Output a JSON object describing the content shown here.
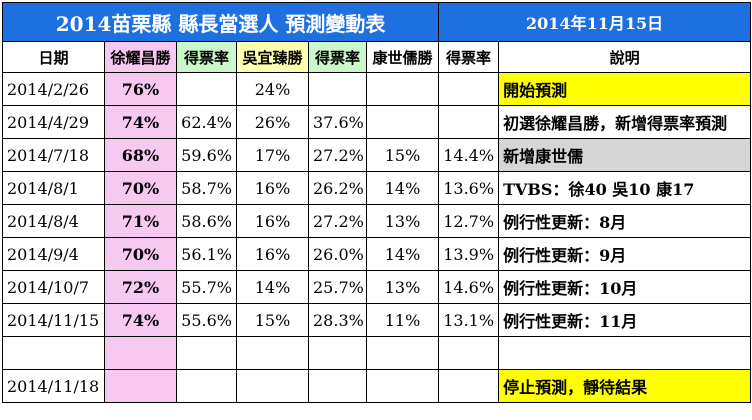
{
  "title": "2014苗栗縣 縣長當選人 預測變動表",
  "title_date": "2014年11月15日",
  "headers": {
    "date": "日期",
    "hsu": "徐耀昌勝",
    "hsu_rate": "得票率",
    "wu": "吳宜臻勝",
    "wu_rate": "得票率",
    "kang": "康世儒勝",
    "kang_rate": "得票率",
    "note": "說明"
  },
  "rows": [
    {
      "date": "2014/2/26",
      "hsu": "76%",
      "hsu_rate": "",
      "wu": "24%",
      "wu_rate": "",
      "kang": "",
      "kang_rate": "",
      "note": "開始預測"
    },
    {
      "date": "2014/4/29",
      "hsu": "74%",
      "hsu_rate": "62.4%",
      "wu": "26%",
      "wu_rate": "37.6%",
      "kang": "",
      "kang_rate": "",
      "note": "初選徐耀昌勝，新增得票率預測"
    },
    {
      "date": "2014/7/18",
      "hsu": "68%",
      "hsu_rate": "59.6%",
      "wu": "17%",
      "wu_rate": "27.2%",
      "kang": "15%",
      "kang_rate": "14.4%",
      "note": "新增康世儒"
    },
    {
      "date": "2014/8/1",
      "hsu": "70%",
      "hsu_rate": "58.7%",
      "wu": "16%",
      "wu_rate": "26.2%",
      "kang": "14%",
      "kang_rate": "13.6%",
      "note": "TVBS：徐40 吳10 康17"
    },
    {
      "date": "2014/8/4",
      "hsu": "71%",
      "hsu_rate": "58.6%",
      "wu": "16%",
      "wu_rate": "27.2%",
      "kang": "13%",
      "kang_rate": "12.7%",
      "note": "例行性更新：8月"
    },
    {
      "date": "2014/9/4",
      "hsu": "70%",
      "hsu_rate": "56.1%",
      "wu": "16%",
      "wu_rate": "26.0%",
      "kang": "14%",
      "kang_rate": "13.9%",
      "note": "例行性更新：9月"
    },
    {
      "date": "2014/10/7",
      "hsu": "72%",
      "hsu_rate": "55.7%",
      "wu": "14%",
      "wu_rate": "25.7%",
      "kang": "13%",
      "kang_rate": "14.6%",
      "note": "例行性更新：10月"
    },
    {
      "date": "2014/11/15",
      "hsu": "74%",
      "hsu_rate": "55.6%",
      "wu": "15%",
      "wu_rate": "28.3%",
      "kang": "11%",
      "kang_rate": "13.1%",
      "note": "例行性更新：11月"
    },
    {
      "date": "",
      "hsu": "",
      "hsu_rate": "",
      "wu": "",
      "wu_rate": "",
      "kang": "",
      "kang_rate": "",
      "note": ""
    },
    {
      "date": "2014/11/18",
      "hsu": "",
      "hsu_rate": "",
      "wu": "",
      "wu_rate": "",
      "kang": "",
      "kang_rate": "",
      "note": "停止預測，靜待結果"
    }
  ],
  "colors": {
    "title_bg": "#1e6fe0",
    "pink": "#f7c8f0",
    "light_green": "#cbf7cb",
    "light_yellow": "#ffffb0",
    "highlight_yellow": "#ffff00",
    "highlight_gray": "#d6d6d6"
  }
}
